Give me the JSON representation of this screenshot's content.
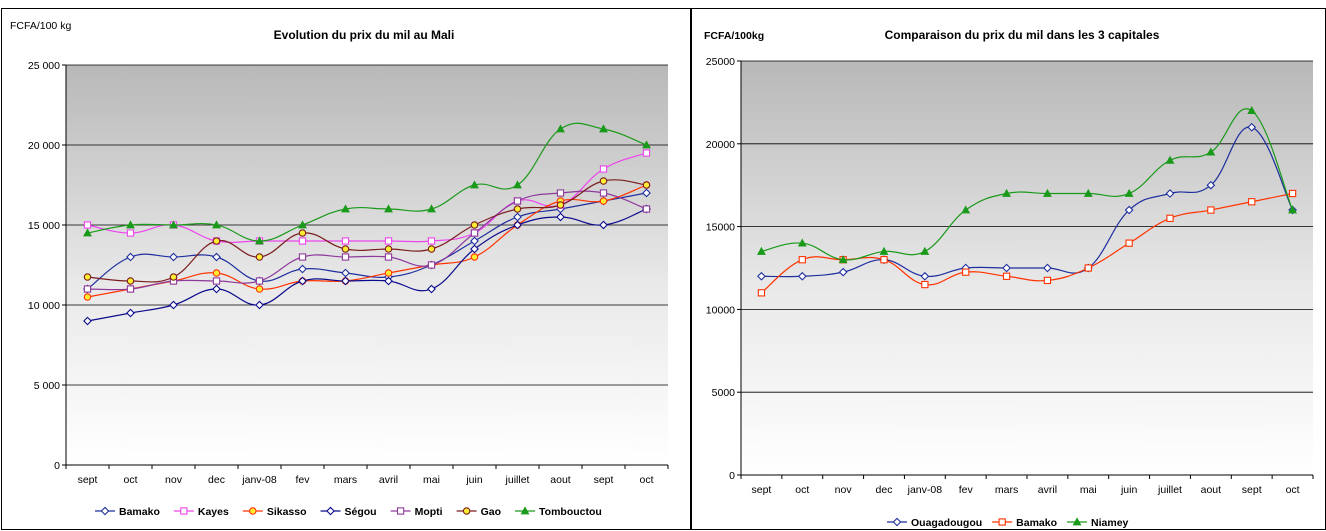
{
  "chart_data": [
    {
      "type": "line",
      "title": "Evolution du prix du mil au Mali",
      "ylabel": "FCFA/100 kg",
      "xlabel": "",
      "categories": [
        "sept",
        "oct",
        "nov",
        "dec",
        "janv-08",
        "fev",
        "mars",
        "avril",
        "mai",
        "juin",
        "juillet",
        "aout",
        "sept",
        "oct"
      ],
      "ylim": [
        0,
        25000
      ],
      "yticks": [
        0,
        5000,
        10000,
        15000,
        20000,
        25000
      ],
      "yticklabels": [
        "0",
        "5 000",
        "10 000",
        "15 000",
        "20 000",
        "25 000"
      ],
      "grid": true,
      "legend": "bottom",
      "series": [
        {
          "name": "Bamako",
          "color": "#1f2f9e",
          "marker": "diamond",
          "values": [
            11000,
            13000,
            13000,
            13000,
            11500,
            12250,
            12000,
            11750,
            12500,
            14000,
            15500,
            16000,
            16500,
            17000
          ]
        },
        {
          "name": "Kayes",
          "color": "#ee44ee",
          "marker": "square",
          "values": [
            15000,
            14500,
            15000,
            14000,
            14000,
            14000,
            14000,
            14000,
            14000,
            14500,
            16500,
            16250,
            18500,
            19500
          ]
        },
        {
          "name": "Sikasso",
          "color": "#ff3300",
          "marker": "circle",
          "values": [
            10500,
            11000,
            11500,
            12000,
            11000,
            11500,
            11500,
            12000,
            12500,
            13000,
            15000,
            16500,
            16500,
            17500
          ]
        },
        {
          "name": "Ségou",
          "color": "#0a0a8c",
          "marker": "diamond",
          "values": [
            9000,
            9500,
            10000,
            11000,
            10000,
            11500,
            11500,
            11500,
            11000,
            13500,
            15000,
            15500,
            15000,
            16000
          ]
        },
        {
          "name": "Mopti",
          "color": "#8e3a9c",
          "marker": "square",
          "values": [
            11000,
            11000,
            11500,
            11500,
            11500,
            13000,
            13000,
            13000,
            12500,
            14500,
            16500,
            17000,
            17000,
            16000
          ]
        },
        {
          "name": "Gao",
          "color": "#7a1c1c",
          "marker": "circle",
          "values": [
            11750,
            11500,
            11750,
            14000,
            13000,
            14500,
            13500,
            13500,
            13500,
            15000,
            16000,
            16250,
            17750,
            17500
          ]
        },
        {
          "name": "Tombouctou",
          "color": "#1a9a1a",
          "marker": "triangle",
          "values": [
            14500,
            15000,
            15000,
            15000,
            14000,
            15000,
            16000,
            16000,
            16000,
            17500,
            17500,
            21000,
            21000,
            20000
          ]
        }
      ]
    },
    {
      "type": "line",
      "title": "Comparaison du prix du mil dans les 3 capitales",
      "ylabel": "FCFA/100kg",
      "xlabel": "",
      "categories": [
        "sept",
        "oct",
        "nov",
        "dec",
        "janv-08",
        "fev",
        "mars",
        "avril",
        "mai",
        "juin",
        "juillet",
        "aout",
        "sept",
        "oct"
      ],
      "ylim": [
        0,
        25000
      ],
      "yticks": [
        0,
        5000,
        10000,
        15000,
        20000,
        25000
      ],
      "yticklabels": [
        "0",
        "5000",
        "10000",
        "15000",
        "20000",
        "25000"
      ],
      "grid": true,
      "legend": "bottom",
      "series": [
        {
          "name": "Ouagadougou",
          "color": "#1f2f9e",
          "marker": "diamond",
          "values": [
            12000,
            12000,
            12250,
            13000,
            12000,
            12500,
            12500,
            12500,
            12500,
            16000,
            17000,
            17500,
            21000,
            16000
          ]
        },
        {
          "name": "Bamako",
          "color": "#ff3300",
          "marker": "square",
          "values": [
            11000,
            13000,
            13000,
            13000,
            11500,
            12250,
            12000,
            11750,
            12500,
            14000,
            15500,
            16000,
            16500,
            17000
          ]
        },
        {
          "name": "Niamey",
          "color": "#1a9a1a",
          "marker": "triangle",
          "values": [
            13500,
            14000,
            13000,
            13500,
            13500,
            16000,
            17000,
            17000,
            17000,
            17000,
            19000,
            19500,
            22000,
            16000
          ]
        }
      ]
    }
  ]
}
